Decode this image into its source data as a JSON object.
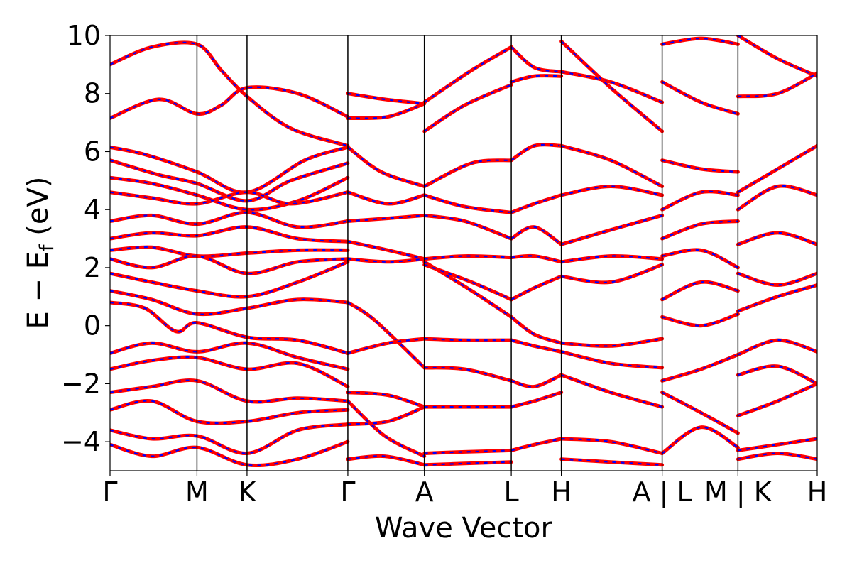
{
  "chart_data": {
    "type": "line",
    "title": "",
    "xlabel": "Wave Vector",
    "ylabel": {
      "main": "E − E",
      "sub": "f",
      "unit": " (eV)"
    },
    "ylim": [
      -5,
      10
    ],
    "yticks": [
      {
        "value": 10,
        "label": "10"
      },
      {
        "value": 8,
        "label": "8"
      },
      {
        "value": 6,
        "label": "6"
      },
      {
        "value": 4,
        "label": "4"
      },
      {
        "value": 2,
        "label": "2"
      },
      {
        "value": 0,
        "label": "0"
      },
      {
        "value": -2,
        "label": "−2"
      },
      {
        "value": -4,
        "label": "−4"
      }
    ],
    "xlim": [
      0,
      10.17
    ],
    "kpoints": [
      {
        "x": 0.0,
        "label": "Γ"
      },
      {
        "x": 1.25,
        "label": "M"
      },
      {
        "x": 1.97,
        "label": "K"
      },
      {
        "x": 3.42,
        "label": "Γ"
      },
      {
        "x": 4.52,
        "label": "A"
      },
      {
        "x": 5.77,
        "label": "L"
      },
      {
        "x": 6.49,
        "label": "H"
      },
      {
        "x": 7.94,
        "label": "A | L"
      },
      {
        "x": 9.03,
        "label": "M | K"
      },
      {
        "x": 10.17,
        "label": "H"
      }
    ],
    "series_colors": {
      "reference": "#ff0000",
      "overlay": "#0000ff"
    },
    "series": [
      {
        "name": "",
        "x": [
          0.0,
          0.6,
          1.25,
          1.6,
          1.97,
          2.6,
          3.42
        ],
        "y": [
          9.0,
          9.6,
          9.7,
          8.8,
          7.9,
          6.8,
          6.2
        ]
      },
      {
        "name": "",
        "x": [
          0.0,
          0.7,
          1.25,
          1.6,
          1.97,
          2.7,
          3.42
        ],
        "y": [
          7.15,
          7.8,
          7.3,
          7.6,
          8.2,
          8.0,
          7.2
        ]
      },
      {
        "name": "",
        "x": [
          0.0,
          0.5,
          1.25,
          1.97,
          2.8,
          3.42
        ],
        "y": [
          6.15,
          5.9,
          5.3,
          4.6,
          5.7,
          6.15
        ]
      },
      {
        "name": "",
        "x": [
          0.0,
          0.7,
          1.25,
          1.97,
          2.6,
          3.42
        ],
        "y": [
          5.7,
          5.2,
          4.9,
          4.3,
          5.0,
          5.6
        ]
      },
      {
        "name": "",
        "x": [
          0.0,
          0.6,
          1.25,
          1.97,
          2.7,
          3.42
        ],
        "y": [
          5.1,
          4.9,
          4.5,
          4.0,
          4.3,
          5.1
        ]
      },
      {
        "name": "",
        "x": [
          0.0,
          0.6,
          1.25,
          1.97,
          2.6,
          3.42
        ],
        "y": [
          4.6,
          4.4,
          4.2,
          4.6,
          4.2,
          4.6
        ]
      },
      {
        "name": "",
        "x": [
          0.0,
          0.6,
          1.25,
          1.97,
          2.7,
          3.42
        ],
        "y": [
          3.6,
          3.8,
          3.5,
          3.9,
          3.4,
          3.6
        ]
      },
      {
        "name": "",
        "x": [
          0.0,
          0.6,
          1.25,
          1.97,
          2.7,
          3.42
        ],
        "y": [
          3.0,
          3.2,
          3.1,
          3.4,
          3.0,
          2.9
        ]
      },
      {
        "name": "",
        "x": [
          0.0,
          0.6,
          1.25,
          1.97,
          2.7,
          3.42
        ],
        "y": [
          2.6,
          2.7,
          2.4,
          2.5,
          2.6,
          2.6
        ]
      },
      {
        "name": "",
        "x": [
          0.0,
          0.6,
          1.25,
          1.97,
          2.7,
          3.42
        ],
        "y": [
          2.3,
          2.0,
          2.4,
          1.8,
          2.2,
          2.3
        ]
      },
      {
        "name": "",
        "x": [
          0.0,
          0.6,
          1.25,
          1.97,
          2.7,
          3.42
        ],
        "y": [
          1.8,
          1.5,
          1.2,
          1.0,
          1.5,
          2.2
        ]
      },
      {
        "name": "",
        "x": [
          0.0,
          0.6,
          1.25,
          1.97,
          2.7,
          3.42
        ],
        "y": [
          1.2,
          0.9,
          0.4,
          0.6,
          0.9,
          0.8
        ]
      },
      {
        "name": "",
        "x": [
          0.0,
          0.5,
          0.95,
          1.25,
          1.97,
          2.7,
          3.42
        ],
        "y": [
          0.8,
          0.6,
          -0.2,
          0.1,
          -0.4,
          -0.5,
          -0.95
        ]
      },
      {
        "name": "",
        "x": [
          0.0,
          0.6,
          1.25,
          1.97,
          2.7,
          3.42
        ],
        "y": [
          -0.95,
          -0.6,
          -0.9,
          -0.6,
          -1.1,
          -1.5
        ]
      },
      {
        "name": "",
        "x": [
          0.0,
          0.6,
          1.25,
          1.97,
          2.7,
          3.42
        ],
        "y": [
          -1.5,
          -1.2,
          -1.1,
          -1.5,
          -1.3,
          -2.1
        ]
      },
      {
        "name": "",
        "x": [
          0.0,
          0.6,
          1.25,
          1.97,
          2.7,
          3.42
        ],
        "y": [
          -2.3,
          -2.1,
          -1.9,
          -2.6,
          -2.5,
          -2.6
        ]
      },
      {
        "name": "",
        "x": [
          0.0,
          0.6,
          1.25,
          1.97,
          2.7,
          3.42
        ],
        "y": [
          -2.9,
          -2.6,
          -3.3,
          -3.3,
          -3.0,
          -2.9
        ]
      },
      {
        "name": "",
        "x": [
          0.0,
          0.6,
          1.25,
          1.97,
          2.7,
          3.42
        ],
        "y": [
          -3.6,
          -3.9,
          -3.8,
          -4.4,
          -3.6,
          -3.4
        ]
      },
      {
        "name": "",
        "x": [
          0.0,
          0.6,
          1.25,
          1.97,
          2.7,
          3.42
        ],
        "y": [
          -4.1,
          -4.5,
          -4.2,
          -4.8,
          -4.6,
          -4.0
        ]
      },
      {
        "name": "",
        "x": [
          3.42,
          3.9,
          4.52
        ],
        "y": [
          6.15,
          5.3,
          4.8
        ]
      },
      {
        "name": "",
        "x": [
          3.42,
          4.0,
          4.52
        ],
        "y": [
          7.15,
          7.2,
          7.65
        ]
      },
      {
        "name": "",
        "x": [
          3.42,
          3.95,
          4.52
        ],
        "y": [
          8.0,
          7.8,
          7.65
        ]
      },
      {
        "name": "",
        "x": [
          3.42,
          4.0,
          4.52
        ],
        "y": [
          4.6,
          4.2,
          4.5
        ]
      },
      {
        "name": "",
        "x": [
          3.42,
          4.0,
          4.52
        ],
        "y": [
          3.6,
          3.7,
          3.8
        ]
      },
      {
        "name": "",
        "x": [
          3.42,
          4.0,
          4.52
        ],
        "y": [
          2.9,
          2.6,
          2.3
        ]
      },
      {
        "name": "",
        "x": [
          3.42,
          4.0,
          4.52
        ],
        "y": [
          2.3,
          2.2,
          2.3
        ]
      },
      {
        "name": "",
        "x": [
          3.42,
          3.8,
          4.52
        ],
        "y": [
          0.8,
          0.2,
          -1.45
        ]
      },
      {
        "name": "",
        "x": [
          3.42,
          4.0,
          4.52
        ],
        "y": [
          -0.95,
          -0.6,
          -0.45
        ]
      },
      {
        "name": "",
        "x": [
          3.42,
          3.95,
          4.52
        ],
        "y": [
          -2.6,
          -3.8,
          -4.5
        ]
      },
      {
        "name": "",
        "x": [
          3.42,
          4.0,
          4.52
        ],
        "y": [
          -2.3,
          -2.4,
          -2.8
        ]
      },
      {
        "name": "",
        "x": [
          3.42,
          4.0,
          4.52
        ],
        "y": [
          -3.4,
          -3.3,
          -2.8
        ]
      },
      {
        "name": "",
        "x": [
          3.42,
          3.95,
          4.52
        ],
        "y": [
          -4.6,
          -4.5,
          -4.8
        ]
      },
      {
        "name": "",
        "x": [
          4.52,
          5.2,
          5.77
        ],
        "y": [
          7.7,
          8.8,
          9.6
        ]
      },
      {
        "name": "",
        "x": [
          4.52,
          5.1,
          5.77
        ],
        "y": [
          6.7,
          7.6,
          8.3
        ]
      },
      {
        "name": "",
        "x": [
          4.52,
          5.2,
          5.77
        ],
        "y": [
          4.8,
          5.6,
          5.7
        ]
      },
      {
        "name": "",
        "x": [
          4.52,
          5.1,
          5.77
        ],
        "y": [
          4.5,
          4.1,
          3.9
        ]
      },
      {
        "name": "",
        "x": [
          4.52,
          5.1,
          5.77
        ],
        "y": [
          3.8,
          3.6,
          3.0
        ]
      },
      {
        "name": "",
        "x": [
          4.52,
          5.1,
          5.77
        ],
        "y": [
          2.3,
          2.4,
          2.35
        ]
      },
      {
        "name": "",
        "x": [
          4.52,
          5.2,
          5.77
        ],
        "y": [
          2.2,
          1.2,
          0.3
        ]
      },
      {
        "name": "",
        "x": [
          4.52,
          5.2,
          5.77
        ],
        "y": [
          2.1,
          1.5,
          0.9
        ]
      },
      {
        "name": "",
        "x": [
          4.52,
          5.1,
          5.77
        ],
        "y": [
          -0.45,
          -0.5,
          -0.5
        ]
      },
      {
        "name": "",
        "x": [
          4.52,
          5.1,
          5.77
        ],
        "y": [
          -1.45,
          -1.5,
          -1.9
        ]
      },
      {
        "name": "",
        "x": [
          4.52,
          5.1,
          5.77
        ],
        "y": [
          -2.8,
          -2.8,
          -2.8
        ]
      },
      {
        "name": "",
        "x": [
          4.52,
          5.1,
          5.77
        ],
        "y": [
          -4.4,
          -4.35,
          -4.3
        ]
      },
      {
        "name": "",
        "x": [
          4.52,
          5.1,
          5.77
        ],
        "y": [
          -4.8,
          -4.75,
          -4.7
        ]
      },
      {
        "name": "",
        "x": [
          5.77,
          6.1,
          6.49
        ],
        "y": [
          9.6,
          8.9,
          8.75
        ]
      },
      {
        "name": "",
        "x": [
          5.77,
          6.1,
          6.49
        ],
        "y": [
          8.4,
          8.6,
          8.6
        ]
      },
      {
        "name": "",
        "x": [
          5.77,
          6.1,
          6.49
        ],
        "y": [
          5.7,
          6.2,
          6.2
        ]
      },
      {
        "name": "",
        "x": [
          5.77,
          6.1,
          6.49
        ],
        "y": [
          3.9,
          4.2,
          4.5
        ]
      },
      {
        "name": "",
        "x": [
          5.77,
          6.1,
          6.49
        ],
        "y": [
          3.0,
          3.4,
          2.8
        ]
      },
      {
        "name": "",
        "x": [
          5.77,
          6.1,
          6.49
        ],
        "y": [
          2.35,
          2.4,
          2.2
        ]
      },
      {
        "name": "",
        "x": [
          5.77,
          6.1,
          6.49
        ],
        "y": [
          0.9,
          1.3,
          1.7
        ]
      },
      {
        "name": "",
        "x": [
          5.77,
          6.1,
          6.49
        ],
        "y": [
          0.3,
          -0.3,
          -0.6
        ]
      },
      {
        "name": "",
        "x": [
          5.77,
          6.1,
          6.49
        ],
        "y": [
          -0.5,
          -0.7,
          -0.9
        ]
      },
      {
        "name": "",
        "x": [
          5.77,
          6.1,
          6.49
        ],
        "y": [
          -1.9,
          -2.1,
          -1.7
        ]
      },
      {
        "name": "",
        "x": [
          5.77,
          6.1,
          6.49
        ],
        "y": [
          -2.8,
          -2.6,
          -2.3
        ]
      },
      {
        "name": "",
        "x": [
          5.77,
          6.1,
          6.49
        ],
        "y": [
          -4.3,
          -4.1,
          -3.9
        ]
      },
      {
        "name": "",
        "x": [
          6.49,
          7.2,
          7.94
        ],
        "y": [
          8.75,
          8.4,
          7.7
        ]
      },
      {
        "name": "",
        "x": [
          6.49,
          7.2,
          7.94
        ],
        "y": [
          9.8,
          8.2,
          6.7
        ]
      },
      {
        "name": "",
        "x": [
          6.49,
          7.2,
          7.94
        ],
        "y": [
          6.2,
          5.7,
          4.8
        ]
      },
      {
        "name": "",
        "x": [
          6.49,
          7.2,
          7.94
        ],
        "y": [
          4.5,
          4.8,
          4.5
        ]
      },
      {
        "name": "",
        "x": [
          6.49,
          7.2,
          7.94
        ],
        "y": [
          2.8,
          3.3,
          3.8
        ]
      },
      {
        "name": "",
        "x": [
          6.49,
          7.2,
          7.94
        ],
        "y": [
          2.2,
          2.4,
          2.3
        ]
      },
      {
        "name": "",
        "x": [
          6.49,
          7.2,
          7.94
        ],
        "y": [
          1.7,
          1.5,
          2.1
        ]
      },
      {
        "name": "",
        "x": [
          6.49,
          7.2,
          7.94
        ],
        "y": [
          -0.6,
          -0.7,
          -0.45
        ]
      },
      {
        "name": "",
        "x": [
          6.49,
          7.2,
          7.94
        ],
        "y": [
          -0.9,
          -1.3,
          -1.45
        ]
      },
      {
        "name": "",
        "x": [
          6.49,
          7.2,
          7.94
        ],
        "y": [
          -1.7,
          -2.3,
          -2.8
        ]
      },
      {
        "name": "",
        "x": [
          6.49,
          7.2,
          7.94
        ],
        "y": [
          -3.9,
          -4.0,
          -4.4
        ]
      },
      {
        "name": "",
        "x": [
          6.49,
          7.2,
          7.94
        ],
        "y": [
          -4.6,
          -4.7,
          -4.8
        ]
      },
      {
        "name": "",
        "x": [
          7.94,
          8.5,
          9.03
        ],
        "y": [
          9.7,
          9.9,
          9.7
        ]
      },
      {
        "name": "",
        "x": [
          7.94,
          8.5,
          9.03
        ],
        "y": [
          8.4,
          7.7,
          7.3
        ]
      },
      {
        "name": "",
        "x": [
          7.94,
          8.5,
          9.03
        ],
        "y": [
          5.7,
          5.4,
          5.3
        ]
      },
      {
        "name": "",
        "x": [
          7.94,
          8.5,
          9.03
        ],
        "y": [
          4.0,
          4.6,
          4.5
        ]
      },
      {
        "name": "",
        "x": [
          7.94,
          8.5,
          9.03
        ],
        "y": [
          3.0,
          3.5,
          3.6
        ]
      },
      {
        "name": "",
        "x": [
          7.94,
          8.5,
          9.03
        ],
        "y": [
          2.4,
          2.6,
          2.0
        ]
      },
      {
        "name": "",
        "x": [
          7.94,
          8.5,
          9.03
        ],
        "y": [
          0.9,
          1.5,
          1.2
        ]
      },
      {
        "name": "",
        "x": [
          7.94,
          8.5,
          9.03
        ],
        "y": [
          0.3,
          0.0,
          0.4
        ]
      },
      {
        "name": "",
        "x": [
          7.94,
          8.5,
          9.03
        ],
        "y": [
          -1.9,
          -1.5,
          -1.0
        ]
      },
      {
        "name": "",
        "x": [
          7.94,
          8.5,
          9.03
        ],
        "y": [
          -2.3,
          -3.0,
          -3.7
        ]
      },
      {
        "name": "",
        "x": [
          7.94,
          8.5,
          9.03
        ],
        "y": [
          -4.4,
          -3.5,
          -4.2
        ]
      },
      {
        "name": "",
        "x": [
          9.03,
          9.6,
          10.17
        ],
        "y": [
          10.0,
          9.2,
          8.6
        ]
      },
      {
        "name": "",
        "x": [
          9.03,
          9.6,
          10.17
        ],
        "y": [
          7.9,
          8.0,
          8.7
        ]
      },
      {
        "name": "",
        "x": [
          9.03,
          9.6,
          10.17
        ],
        "y": [
          4.6,
          5.4,
          6.2
        ]
      },
      {
        "name": "",
        "x": [
          9.03,
          9.6,
          10.17
        ],
        "y": [
          4.0,
          4.8,
          4.5
        ]
      },
      {
        "name": "",
        "x": [
          9.03,
          9.6,
          10.17
        ],
        "y": [
          2.8,
          3.2,
          2.8
        ]
      },
      {
        "name": "",
        "x": [
          9.03,
          9.6,
          10.17
        ],
        "y": [
          1.8,
          1.4,
          1.8
        ]
      },
      {
        "name": "",
        "x": [
          9.03,
          9.6,
          10.17
        ],
        "y": [
          0.5,
          1.0,
          1.4
        ]
      },
      {
        "name": "",
        "x": [
          9.03,
          9.6,
          10.17
        ],
        "y": [
          -1.0,
          -0.5,
          -0.9
        ]
      },
      {
        "name": "",
        "x": [
          9.03,
          9.6,
          10.17
        ],
        "y": [
          -1.7,
          -1.4,
          -2.0
        ]
      },
      {
        "name": "",
        "x": [
          9.03,
          9.6,
          10.17
        ],
        "y": [
          -3.1,
          -2.6,
          -2.0
        ]
      },
      {
        "name": "",
        "x": [
          9.03,
          9.6,
          10.17
        ],
        "y": [
          -4.3,
          -4.1,
          -3.9
        ]
      },
      {
        "name": "",
        "x": [
          9.03,
          9.6,
          10.17
        ],
        "y": [
          -4.6,
          -4.4,
          -4.6
        ]
      }
    ]
  }
}
